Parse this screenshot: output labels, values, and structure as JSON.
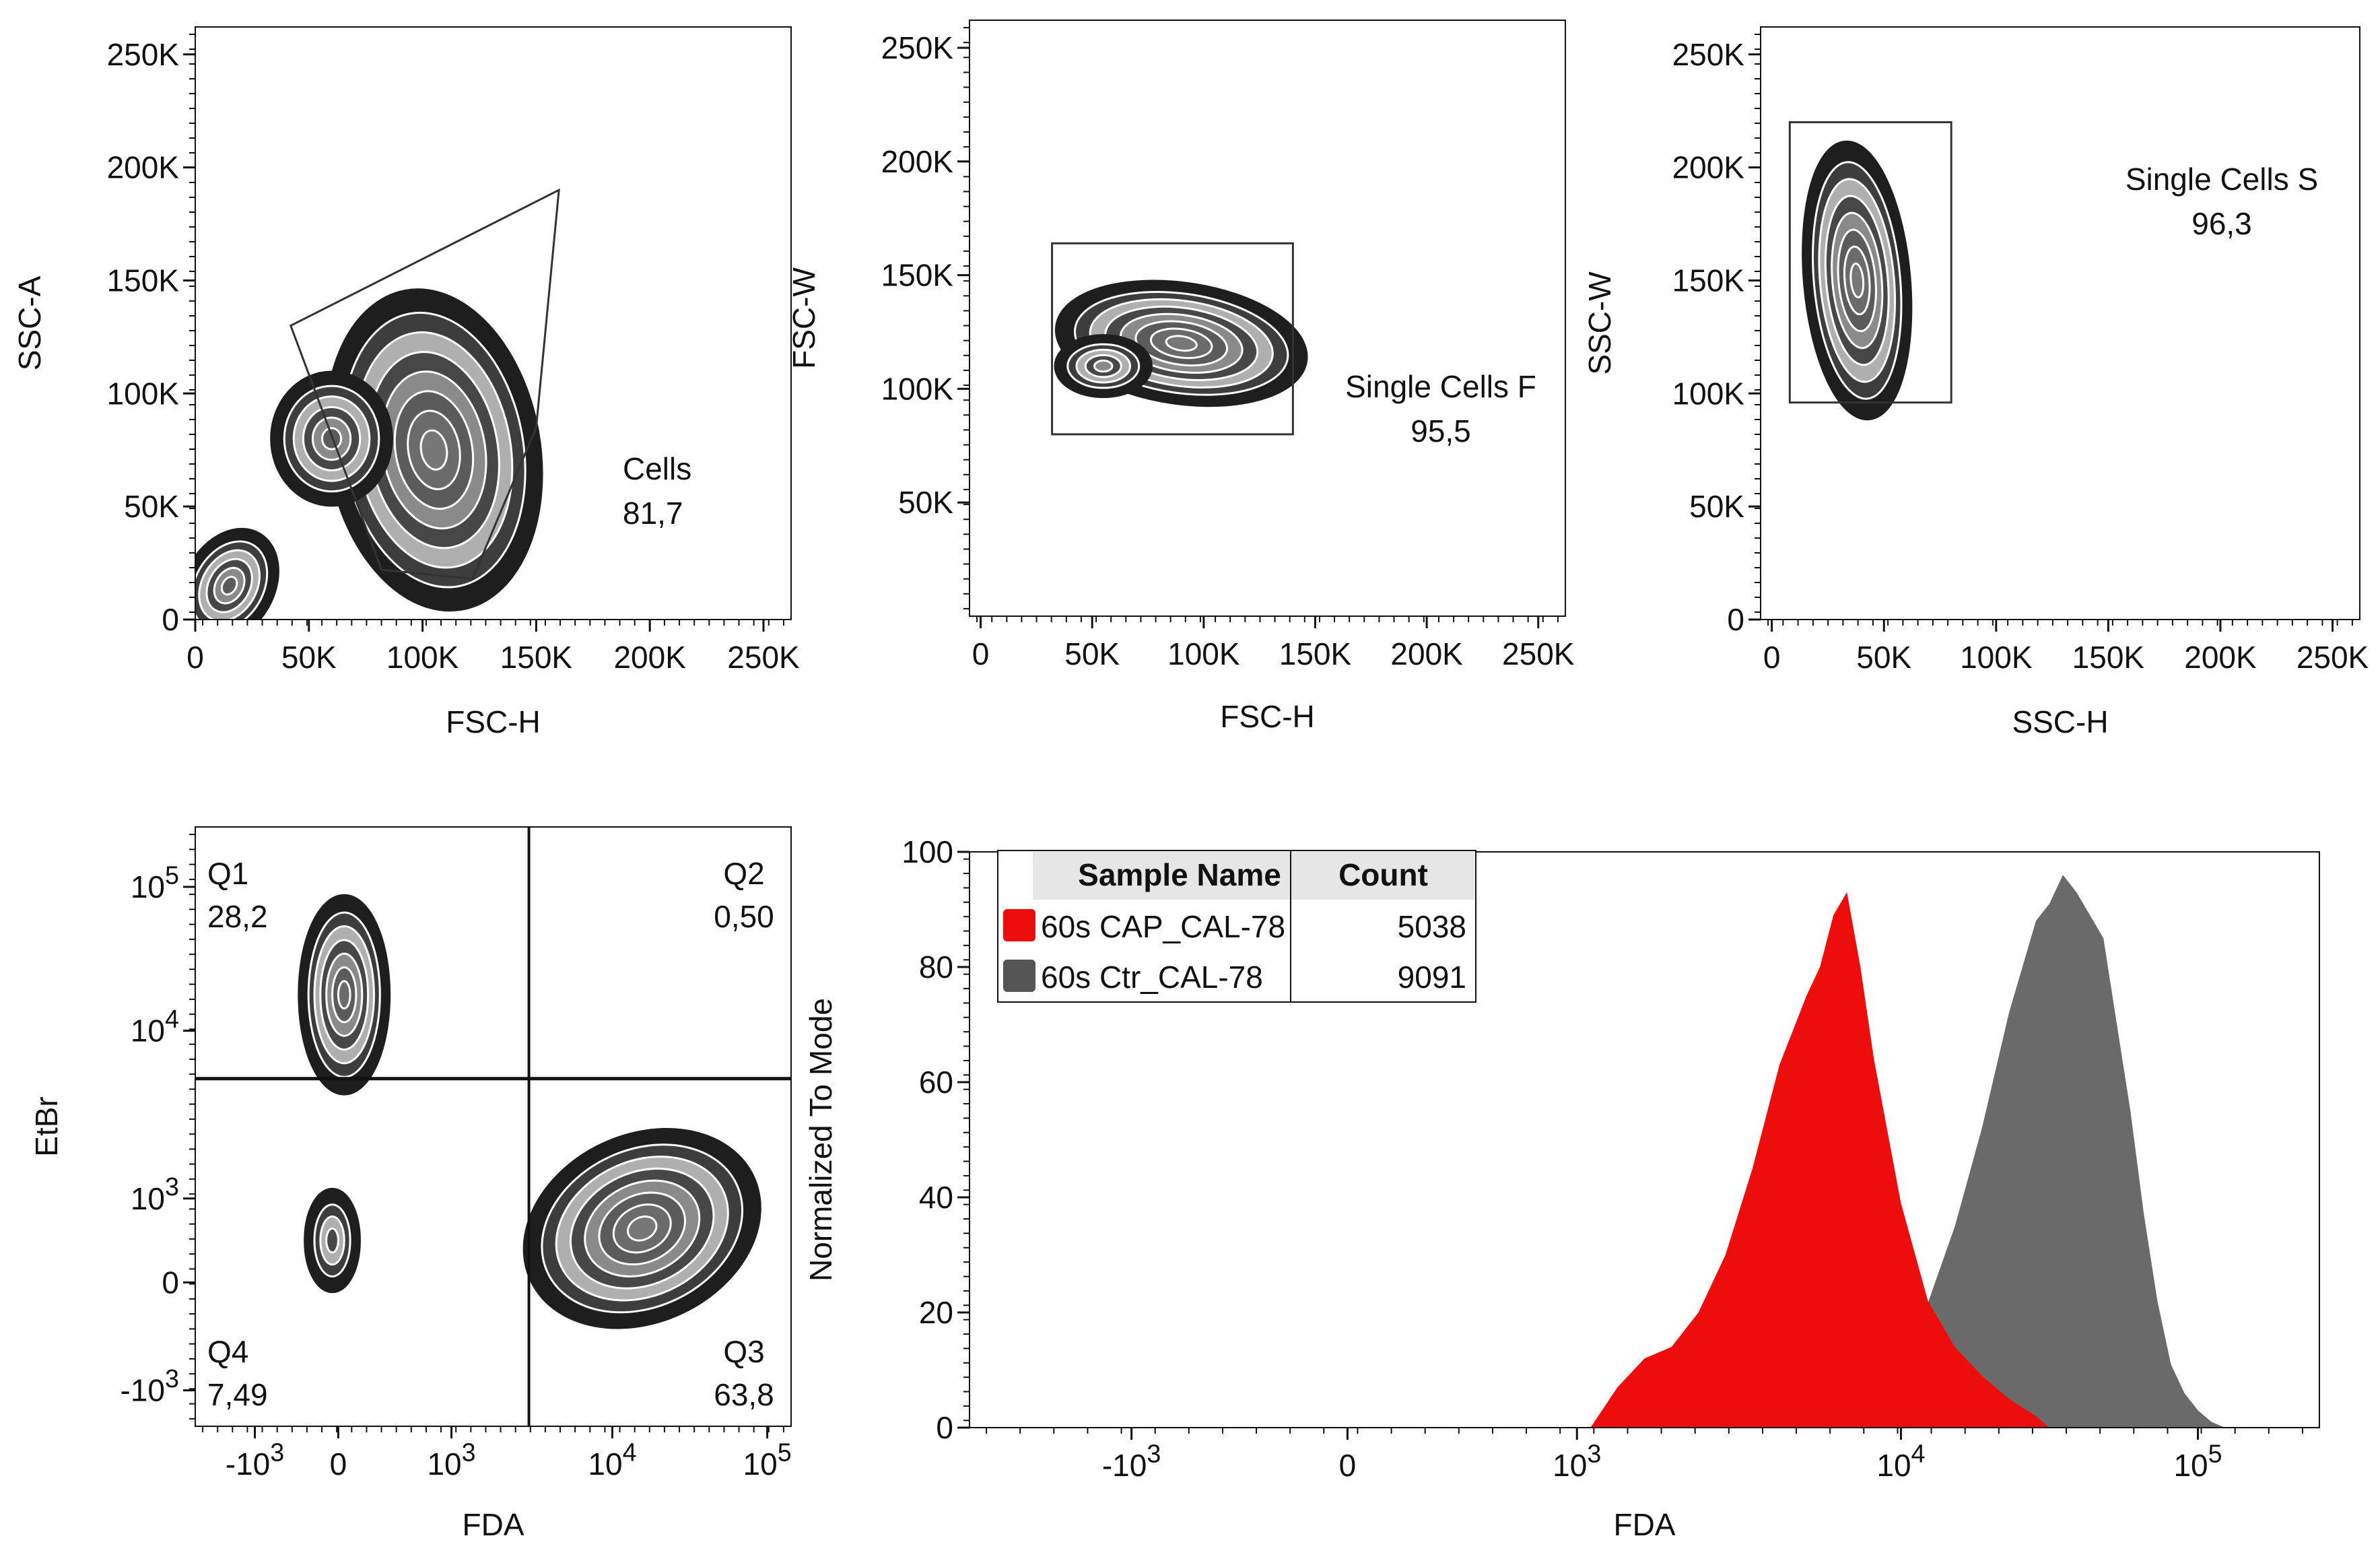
{
  "colors": {
    "axis": "#111111",
    "contour_dark": "#1e1e1e",
    "contour_light": "#d8d8d8",
    "gate_line": "#333333",
    "quadrant_line": "#111111",
    "cap_fill": "#ee0d0d",
    "ctr_fill": "#6a6a6a",
    "legend_header_bg": "#e6e6e6"
  },
  "chart_data": [
    {
      "id": "p1",
      "type": "contour",
      "xlabel": "FSC-H",
      "ylabel": "SSC-A",
      "xlim": [
        0,
        262144
      ],
      "ylim": [
        0,
        262144
      ],
      "x_ticks": [
        {
          "v": 0,
          "label": "0"
        },
        {
          "v": 50000,
          "label": "50K"
        },
        {
          "v": 100000,
          "label": "100K"
        },
        {
          "v": 150000,
          "label": "150K"
        },
        {
          "v": 200000,
          "label": "200K"
        },
        {
          "v": 250000,
          "label": "250K"
        }
      ],
      "y_ticks": [
        {
          "v": 0,
          "label": "0"
        },
        {
          "v": 50000,
          "label": "50K"
        },
        {
          "v": 100000,
          "label": "100K"
        },
        {
          "v": 150000,
          "label": "150K"
        },
        {
          "v": 200000,
          "label": "200K"
        },
        {
          "v": 250000,
          "label": "250K"
        }
      ],
      "gate": {
        "name": "Cells",
        "value": "81,7",
        "shape": "polygon",
        "polygon": [
          [
            42000,
            130000
          ],
          [
            160000,
            190000
          ],
          [
            150000,
            85000
          ],
          [
            122000,
            18000
          ],
          [
            82000,
            22000
          ]
        ]
      },
      "populations": [
        {
          "cx": 105000,
          "cy": 75000,
          "rx": 45000,
          "ry": 70000,
          "rot": -10,
          "levels": 8
        },
        {
          "cx": 60000,
          "cy": 80000,
          "rx": 25000,
          "ry": 28000,
          "rot": 0,
          "levels": 6
        },
        {
          "cx": 15000,
          "cy": 15000,
          "rx": 18000,
          "ry": 25000,
          "rot": 30,
          "levels": 6
        }
      ]
    },
    {
      "id": "p2",
      "type": "contour",
      "xlabel": "FSC-H",
      "ylabel": "FSC-W",
      "xlim": [
        -5000,
        262144
      ],
      "ylim": [
        0,
        262144
      ],
      "x_ticks": [
        {
          "v": 0,
          "label": "0"
        },
        {
          "v": 50000,
          "label": "50K"
        },
        {
          "v": 100000,
          "label": "100K"
        },
        {
          "v": 150000,
          "label": "150K"
        },
        {
          "v": 200000,
          "label": "200K"
        },
        {
          "v": 250000,
          "label": "250K"
        }
      ],
      "y_ticks": [
        {
          "v": 50000,
          "label": "50K"
        },
        {
          "v": 100000,
          "label": "100K"
        },
        {
          "v": 150000,
          "label": "150K"
        },
        {
          "v": 200000,
          "label": "200K"
        },
        {
          "v": 250000,
          "label": "250K"
        }
      ],
      "gate": {
        "name": "Single Cells F",
        "value": "95,5",
        "shape": "rect",
        "rect": [
          [
            32000,
            80000
          ],
          [
            140000,
            164000
          ]
        ]
      },
      "populations": [
        {
          "cx": 90000,
          "cy": 120000,
          "rx": 55000,
          "ry": 25000,
          "rot": 8,
          "levels": 8
        },
        {
          "cx": 55000,
          "cy": 110000,
          "rx": 20000,
          "ry": 12000,
          "rot": 0,
          "levels": 5
        }
      ]
    },
    {
      "id": "p3",
      "type": "contour",
      "xlabel": "SSC-H",
      "ylabel": "SSC-W",
      "xlim": [
        -5000,
        262144
      ],
      "ylim": [
        0,
        262144
      ],
      "x_ticks": [
        {
          "v": 0,
          "label": "0"
        },
        {
          "v": 50000,
          "label": "50K"
        },
        {
          "v": 100000,
          "label": "100K"
        },
        {
          "v": 150000,
          "label": "150K"
        },
        {
          "v": 200000,
          "label": "200K"
        },
        {
          "v": 250000,
          "label": "250K"
        }
      ],
      "y_ticks": [
        {
          "v": 0,
          "label": "0"
        },
        {
          "v": 50000,
          "label": "50K"
        },
        {
          "v": 100000,
          "label": "100K"
        },
        {
          "v": 150000,
          "label": "150K"
        },
        {
          "v": 200000,
          "label": "200K"
        },
        {
          "v": 250000,
          "label": "250K"
        }
      ],
      "gate": {
        "name": "Single Cells S",
        "value": "96,3",
        "shape": "rect",
        "rect": [
          [
            8000,
            96000
          ],
          [
            80000,
            220000
          ]
        ]
      },
      "populations": [
        {
          "cx": 38000,
          "cy": 150000,
          "rx": 22000,
          "ry": 60000,
          "rot": -5,
          "levels": 8
        }
      ]
    },
    {
      "id": "p4",
      "type": "contour",
      "xlabel": "FDA",
      "ylabel": "EtBr",
      "xlim": [
        0,
        1
      ],
      "ylim": [
        0,
        1
      ],
      "x_ticks": [
        {
          "v": 0.1,
          "label": "-10",
          "exp": "3"
        },
        {
          "v": 0.24,
          "label": "0"
        },
        {
          "v": 0.43,
          "label": "10",
          "exp": "3"
        },
        {
          "v": 0.7,
          "label": "10",
          "exp": "4"
        },
        {
          "v": 0.96,
          "label": "10",
          "exp": "5"
        }
      ],
      "y_ticks": [
        {
          "v": 0.06,
          "label": "-10",
          "exp": "3"
        },
        {
          "v": 0.24,
          "label": "0"
        },
        {
          "v": 0.38,
          "label": "10",
          "exp": "3"
        },
        {
          "v": 0.66,
          "label": "10",
          "exp": "4"
        },
        {
          "v": 0.9,
          "label": "10",
          "exp": "5"
        }
      ],
      "divider": {
        "x": 0.56,
        "y": 0.58
      },
      "quadrants": [
        {
          "name": "Q1",
          "value": "28,2",
          "pos": "top-left"
        },
        {
          "name": "Q2",
          "value": "0,50",
          "pos": "top-right"
        },
        {
          "name": "Q3",
          "value": "63,8",
          "pos": "bottom-right"
        },
        {
          "name": "Q4",
          "value": "7,49",
          "pos": "bottom-left"
        }
      ],
      "populations": [
        {
          "cx": 0.25,
          "cy": 0.72,
          "rx": 0.07,
          "ry": 0.16,
          "rot": 0,
          "levels": 7
        },
        {
          "cx": 0.75,
          "cy": 0.33,
          "rx": 0.2,
          "ry": 0.15,
          "rot": -25,
          "levels": 8
        },
        {
          "cx": 0.23,
          "cy": 0.31,
          "rx": 0.04,
          "ry": 0.08,
          "rot": 0,
          "levels": 4
        }
      ]
    },
    {
      "id": "p5",
      "type": "area",
      "xlabel": "FDA",
      "ylabel": "Normalized To Mode",
      "xlim": [
        0,
        1
      ],
      "ylim": [
        0,
        100
      ],
      "x_ticks": [
        {
          "v": 0.12,
          "label": "-10",
          "exp": "3"
        },
        {
          "v": 0.28,
          "label": "0"
        },
        {
          "v": 0.45,
          "label": "10",
          "exp": "3"
        },
        {
          "v": 0.69,
          "label": "10",
          "exp": "4"
        },
        {
          "v": 0.91,
          "label": "10",
          "exp": "5"
        }
      ],
      "y_ticks": [
        {
          "v": 0,
          "label": "0"
        },
        {
          "v": 20,
          "label": "20"
        },
        {
          "v": 40,
          "label": "40"
        },
        {
          "v": 60,
          "label": "60"
        },
        {
          "v": 80,
          "label": "80"
        },
        {
          "v": 100,
          "label": "100"
        }
      ],
      "legend": {
        "headers": [
          "Sample Name",
          "Count"
        ],
        "rows": [
          {
            "name": "60s CAP_CAL-78",
            "count": "5038",
            "color": "#ee0d0d"
          },
          {
            "name": "60s Ctr_CAL-78",
            "count": "9091",
            "color": "#555555"
          }
        ]
      },
      "series": [
        {
          "name": "60s Ctr_CAL-78",
          "color": "#6a6a6a",
          "x": [
            0.67,
            0.7,
            0.73,
            0.75,
            0.77,
            0.79,
            0.8,
            0.81,
            0.82,
            0.83,
            0.84,
            0.85,
            0.86,
            0.87,
            0.88,
            0.89,
            0.9,
            0.91,
            0.92,
            0.93
          ],
          "y": [
            0,
            15,
            35,
            52,
            72,
            88,
            91,
            96,
            93,
            89,
            85,
            70,
            55,
            37,
            22,
            11,
            6,
            3,
            1,
            0
          ]
        },
        {
          "name": "60s CAP_CAL-78",
          "color": "#ee0d0d",
          "x": [
            0.46,
            0.48,
            0.5,
            0.52,
            0.54,
            0.56,
            0.58,
            0.6,
            0.62,
            0.63,
            0.64,
            0.65,
            0.66,
            0.67,
            0.69,
            0.71,
            0.73,
            0.75,
            0.77,
            0.79,
            0.8
          ],
          "y": [
            0,
            7,
            12,
            14,
            20,
            30,
            45,
            63,
            75,
            80,
            89,
            93,
            80,
            64,
            39,
            22,
            14,
            9,
            5,
            2,
            0
          ]
        }
      ]
    }
  ]
}
